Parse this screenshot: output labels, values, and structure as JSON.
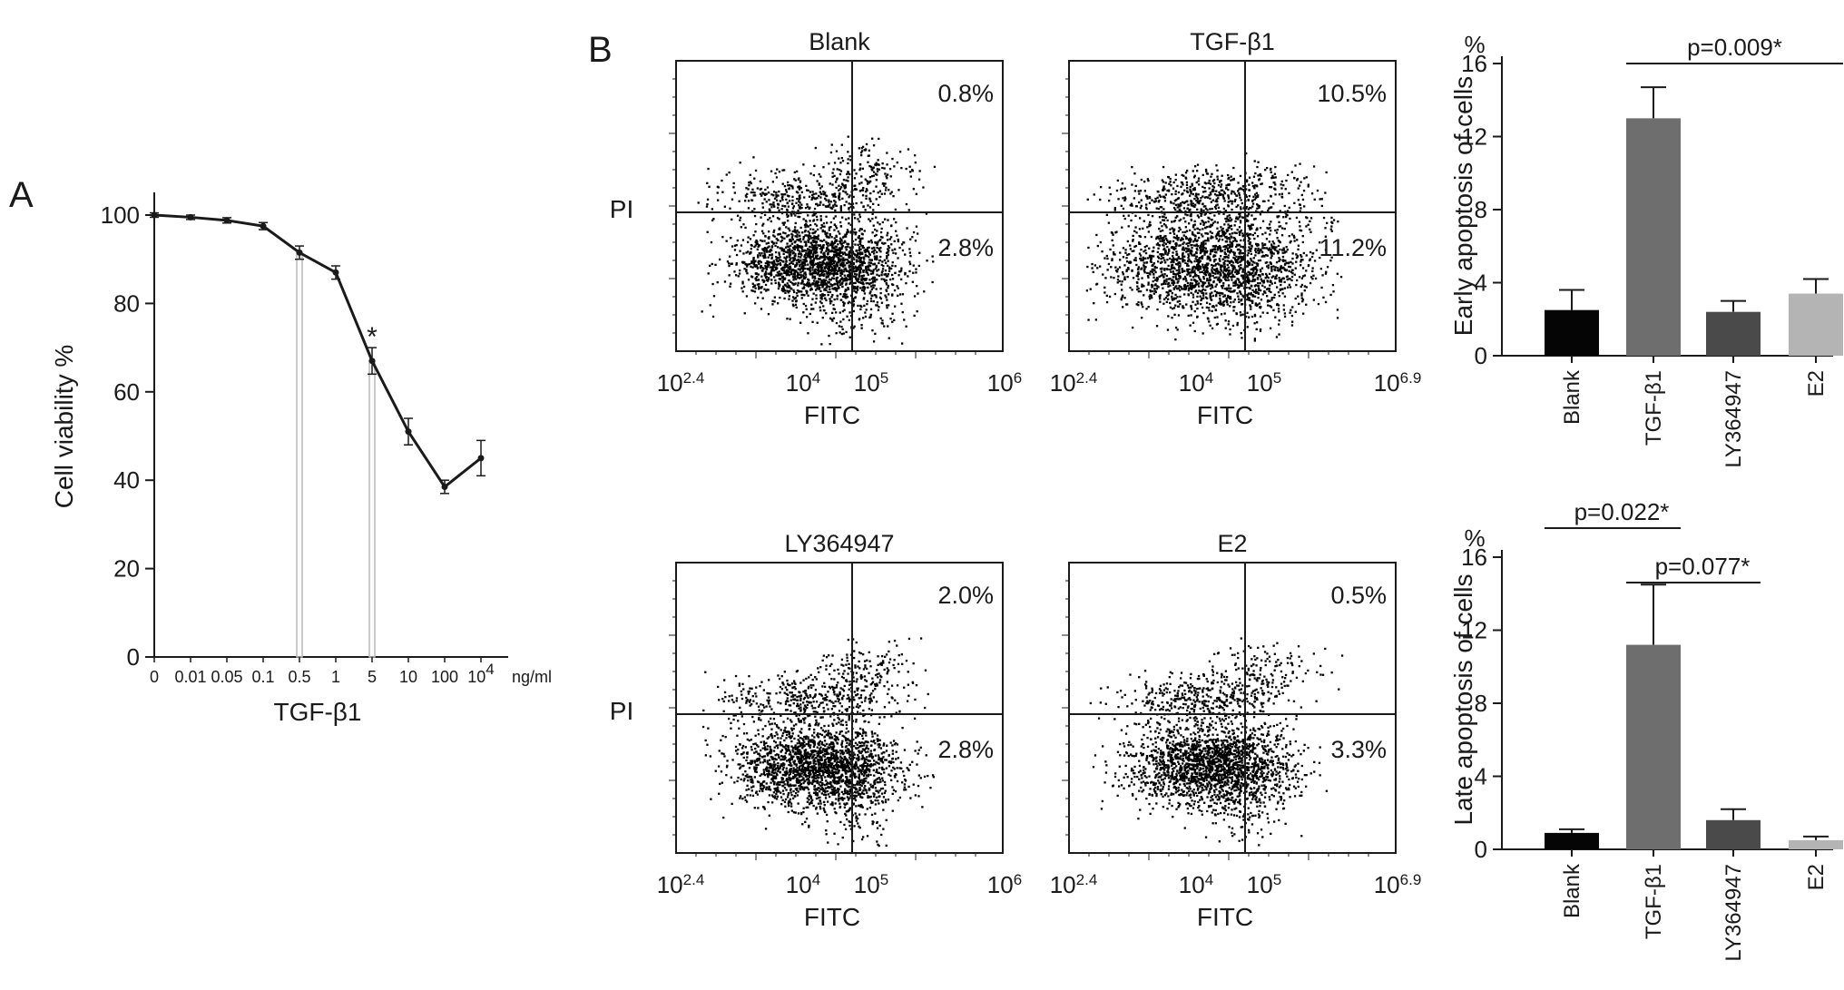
{
  "panels": {
    "a": "A",
    "b": "B"
  },
  "chart_data": [
    {
      "type": "line",
      "panel": "A",
      "xlabel": "TGF-β1",
      "ylabel": "Cell viability %",
      "x_unit": "ng/ml",
      "categories": [
        "0",
        "0.01",
        "0.05",
        "0.1",
        "0.5",
        "1",
        "5",
        "10",
        "100",
        "10^4"
      ],
      "values": [
        100,
        99.5,
        98.8,
        97.5,
        91.5,
        87,
        67,
        51,
        38.5,
        45
      ],
      "errors": [
        0.5,
        0.5,
        0.6,
        0.8,
        1.5,
        1.5,
        3,
        3,
        1.5,
        4
      ],
      "ylim": [
        0,
        100
      ],
      "yticks": [
        0,
        20,
        40,
        60,
        80,
        100
      ],
      "annotations": [
        {
          "category": "5",
          "text": "*"
        }
      ],
      "highlighted_doses": [
        "0.5",
        "5"
      ]
    },
    {
      "type": "scatter",
      "panel": "B",
      "subtype": "flow-cytometry",
      "xlabel": "FITC",
      "ylabel": "PI",
      "plots": [
        {
          "title": "Blank",
          "upper_right": "0.8%",
          "lower_right": "2.8%",
          "x_ticks": [
            "2.4",
            "4",
            "5",
            "6"
          ]
        },
        {
          "title": "TGF-β1",
          "upper_right": "10.5%",
          "lower_right": "11.2%",
          "x_ticks": [
            "2.4",
            "4",
            "5",
            "6.9"
          ]
        },
        {
          "title": "LY364947",
          "upper_right": "2.0%",
          "lower_right": "2.8%",
          "x_ticks": [
            "2.4",
            "4",
            "5",
            "6"
          ]
        },
        {
          "title": "E2",
          "upper_right": "0.5%",
          "lower_right": "3.3%",
          "x_ticks": [
            "2.4",
            "4",
            "5",
            "6.9"
          ]
        }
      ]
    },
    {
      "type": "bar",
      "panel": "B",
      "ylabel": "Early apoptosis of cells",
      "unit": "%",
      "categories": [
        "Blank",
        "TGF-β1",
        "LY364947",
        "E2"
      ],
      "values": [
        2.5,
        13,
        2.4,
        3.4
      ],
      "errors": [
        1.1,
        1.7,
        0.6,
        0.8
      ],
      "colors": [
        "#050505",
        "#6e6e6e",
        "#4a4a4a",
        "#b4b4b4"
      ],
      "ylim": [
        0,
        16
      ],
      "yticks": [
        0,
        4,
        8,
        12,
        16
      ],
      "annotations": [
        {
          "from": "TGF-β1",
          "to": "E2",
          "text": "p=0.009*"
        }
      ]
    },
    {
      "type": "bar",
      "panel": "B",
      "ylabel": "Late apoptosis of cells",
      "unit": "%",
      "categories": [
        "Blank",
        "TGF-β1",
        "LY364947",
        "E2"
      ],
      "values": [
        0.9,
        11.2,
        1.6,
        0.5
      ],
      "errors": [
        0.2,
        3.3,
        0.6,
        0.2
      ],
      "colors": [
        "#050505",
        "#6e6e6e",
        "#4a4a4a",
        "#b4b4b4"
      ],
      "ylim": [
        0,
        16
      ],
      "yticks": [
        0,
        4,
        8,
        12,
        16
      ],
      "annotations": [
        {
          "from": "Blank",
          "to": "TGF-β1",
          "text": "p=0.022*"
        },
        {
          "from": "TGF-β1",
          "to": "LY364947",
          "text": "p=0.077*"
        }
      ]
    }
  ]
}
